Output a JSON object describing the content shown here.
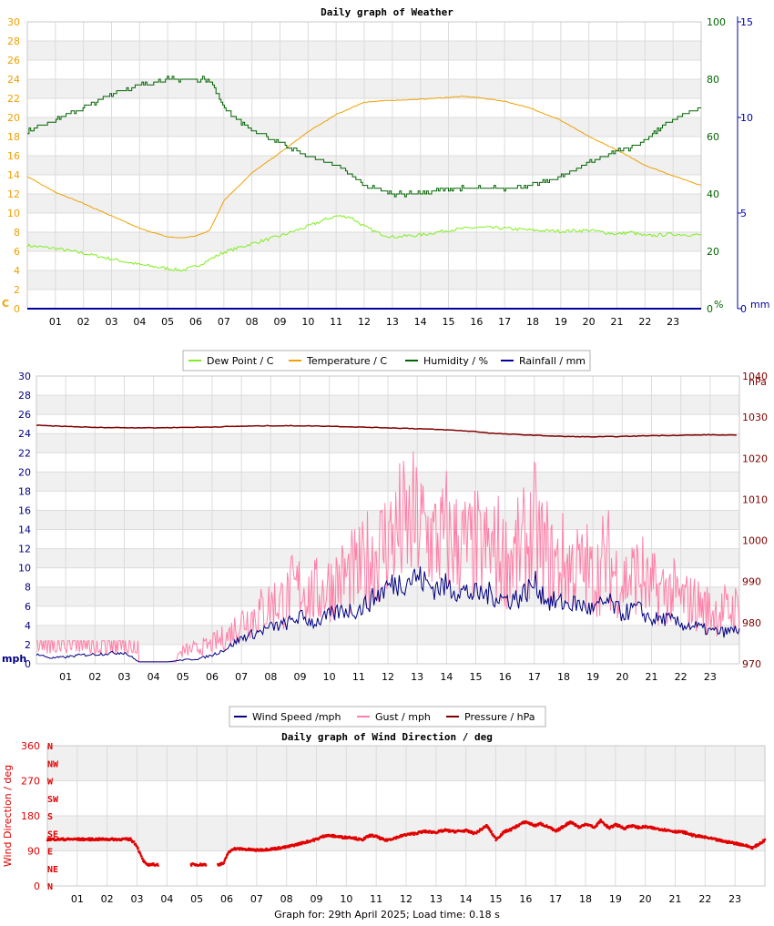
{
  "footer": "Graph for: 29th April 2025; Load time: 0.18 s",
  "hours": [
    "01",
    "02",
    "03",
    "04",
    "05",
    "06",
    "07",
    "08",
    "09",
    "10",
    "11",
    "12",
    "13",
    "14",
    "15",
    "16",
    "17",
    "18",
    "19",
    "20",
    "21",
    "22",
    "23"
  ],
  "colors": {
    "dewpoint": "#80ee20",
    "temperature": "#f0a000",
    "humidity": "#006400",
    "rainfall": "#0000a0",
    "wind": "#000080",
    "gust": "#ff80a8",
    "pressure": "#800000",
    "direction": "#e00000",
    "left_axis_weather": "#f0a000",
    "left_axis_wind": "#000080"
  },
  "chart_data": [
    {
      "type": "line",
      "title": "Daily graph of Weather",
      "x_unit": "hour of day",
      "x_range": [
        0,
        24
      ],
      "left_axis": {
        "unit": "C",
        "range": [
          0,
          30
        ],
        "ticks": [
          0,
          2,
          4,
          6,
          8,
          10,
          12,
          14,
          16,
          18,
          20,
          22,
          24,
          26,
          28,
          30
        ]
      },
      "right_axis_humidity": {
        "unit": "%",
        "range": [
          0,
          100
        ],
        "ticks": [
          0,
          20,
          40,
          60,
          80,
          100
        ]
      },
      "right_axis_rain": {
        "unit": "mm",
        "range": [
          0,
          15
        ],
        "ticks": [
          0,
          5,
          10,
          15
        ]
      },
      "grid": true,
      "legend": {
        "placement": "bottom-center"
      },
      "series": [
        {
          "name": "Dew Point / C",
          "axis": "left",
          "x": [
            0,
            1,
            2,
            3,
            4,
            5,
            5.5,
            6,
            7,
            8,
            9,
            10,
            10.5,
            11,
            11.5,
            12,
            12.5,
            13,
            14,
            15,
            16,
            17,
            18,
            19,
            20,
            21,
            21.5,
            22,
            23,
            24
          ],
          "values": [
            6.6,
            6.3,
            5.8,
            5.2,
            4.6,
            4.2,
            4.0,
            4.4,
            5.9,
            6.8,
            7.6,
            8.6,
            9.2,
            9.7,
            9.6,
            8.6,
            7.9,
            7.5,
            7.7,
            8.2,
            8.5,
            8.4,
            8.2,
            8.1,
            8.2,
            7.8,
            8.0,
            7.6,
            7.8,
            7.7
          ]
        },
        {
          "name": "Temperature / C",
          "axis": "left",
          "x": [
            0,
            1,
            2,
            3,
            4,
            5,
            5.5,
            6,
            6.5,
            7,
            8,
            9,
            10,
            11,
            12,
            13,
            14,
            15,
            15.5,
            16,
            17,
            18,
            19,
            20,
            21,
            22,
            23,
            24
          ],
          "values": [
            13.8,
            12.2,
            11.0,
            9.7,
            8.4,
            7.5,
            7.4,
            7.6,
            8.2,
            11.3,
            14.2,
            16.3,
            18.5,
            20.3,
            21.6,
            21.8,
            21.9,
            22.1,
            22.2,
            22.1,
            21.7,
            20.9,
            19.7,
            18.0,
            16.6,
            15.0,
            13.9,
            12.9
          ]
        },
        {
          "name": "Humidity / %",
          "axis": "right",
          "x": [
            0,
            1,
            2,
            3,
            4,
            5,
            6,
            6.5,
            7,
            8,
            9,
            10,
            11,
            12,
            13,
            14,
            15,
            16,
            17,
            18,
            19,
            20,
            21,
            21.5,
            22,
            23,
            24
          ],
          "values": [
            62,
            66,
            70,
            75,
            78,
            80,
            80,
            80,
            70,
            62,
            58,
            53,
            50,
            43,
            40,
            40,
            42,
            42,
            42,
            43,
            46,
            51,
            55,
            56,
            59,
            66,
            70
          ]
        },
        {
          "name": "Rainfall / mm",
          "axis": "rain",
          "x": [
            0,
            24
          ],
          "values": [
            0,
            0
          ]
        }
      ]
    },
    {
      "type": "line",
      "title": "",
      "x_unit": "hour of day",
      "x_range": [
        0,
        24
      ],
      "left_axis": {
        "unit": "mph",
        "range": [
          0,
          30
        ],
        "ticks": [
          0,
          2,
          4,
          6,
          8,
          10,
          12,
          14,
          16,
          18,
          20,
          22,
          24,
          26,
          28,
          30
        ]
      },
      "right_axis": {
        "unit": "hPa",
        "range": [
          970,
          1040
        ],
        "ticks": [
          970,
          980,
          990,
          1000,
          1010,
          1020,
          1030,
          1040
        ]
      },
      "grid": true,
      "legend": {
        "placement": "bottom-center"
      },
      "series": [
        {
          "name": "Wind Speed /mph",
          "axis": "left",
          "x": [
            0,
            0.5,
            1,
            1.5,
            2,
            2.5,
            3,
            3.5,
            4,
            4.5,
            5,
            5.5,
            6,
            6.5,
            7,
            7.5,
            8,
            8.5,
            9,
            9.5,
            10,
            10.5,
            11,
            11.5,
            12,
            12.5,
            13,
            13.5,
            14,
            14.5,
            15,
            15.5,
            16,
            16.5,
            17,
            17.5,
            18,
            18.5,
            19,
            19.5,
            20,
            20.5,
            21,
            21.5,
            22,
            22.5,
            23,
            23.5,
            24
          ],
          "values": [
            1,
            0.6,
            0.7,
            0.9,
            1,
            1.1,
            1.2,
            0.2,
            0.2,
            0.2,
            0.4,
            0.5,
            0.9,
            1.6,
            2.7,
            3.2,
            3.8,
            4.1,
            4.9,
            4.3,
            5.0,
            5.6,
            5.6,
            6.8,
            8.1,
            8.6,
            9.1,
            8.0,
            8.1,
            7.6,
            7.2,
            7.3,
            6.7,
            6.9,
            8.4,
            6.5,
            6.3,
            6.2,
            5.6,
            6.5,
            5.2,
            5.8,
            4.6,
            4.7,
            4.1,
            3.9,
            3.4,
            3.3,
            3.6
          ]
        },
        {
          "name": "Gust / mph",
          "axis": "left",
          "x": [
            0,
            0.5,
            1,
            1.5,
            2,
            2.5,
            3,
            3.5,
            4,
            4.5,
            5,
            5.5,
            6,
            6.5,
            7,
            7.5,
            8,
            8.5,
            9,
            9.5,
            10,
            10.5,
            11,
            11.5,
            12,
            12.5,
            13,
            13.5,
            14,
            14.5,
            15,
            15.5,
            16,
            16.5,
            17,
            17.5,
            18,
            18.5,
            19,
            19.5,
            20,
            20.5,
            21,
            21.5,
            22,
            22.5,
            23,
            23.5,
            24
          ],
          "values": [
            1.5,
            1.5,
            1.5,
            1.6,
            1.6,
            1.8,
            2.0,
            0.2,
            0.2,
            0.2,
            1.5,
            1.8,
            2.3,
            3.2,
            5.1,
            5.9,
            7.1,
            7.6,
            9.2,
            8.0,
            9.3,
            10.3,
            10.4,
            12.7,
            15.0,
            15.6,
            16.7,
            14.8,
            14.9,
            14.2,
            13.3,
            13.5,
            12.5,
            12.9,
            15.6,
            12.1,
            11.6,
            11.5,
            10.3,
            12.0,
            9.7,
            10.7,
            8.5,
            8.8,
            7.6,
            7.2,
            6.3,
            6.1,
            6.7
          ]
        },
        {
          "name": "Pressure / hPa",
          "axis": "right",
          "x": [
            0,
            2,
            4,
            6,
            7,
            8,
            9,
            10,
            11,
            12,
            13,
            14,
            15,
            15.5,
            16,
            17,
            18,
            19,
            20,
            21,
            22,
            23,
            23.9
          ],
          "values": [
            1028.0,
            1027.5,
            1027.4,
            1027.6,
            1027.8,
            1027.9,
            1027.9,
            1027.8,
            1027.6,
            1027.4,
            1027.2,
            1026.9,
            1026.5,
            1026.1,
            1025.9,
            1025.6,
            1025.3,
            1025.2,
            1025.3,
            1025.5,
            1025.6,
            1025.7,
            1025.6
          ]
        }
      ]
    },
    {
      "type": "scatter",
      "title": "Daily graph of Wind Direction / deg",
      "x_unit": "hour of day",
      "x_range": [
        0,
        24
      ],
      "y_axis": {
        "label": "Wind Direction / deg",
        "range": [
          0,
          360
        ],
        "ticks": [
          0,
          90,
          180,
          270,
          360
        ]
      },
      "compass_labels": [
        {
          "label": "N",
          "deg": 360
        },
        {
          "label": "NW",
          "deg": 315
        },
        {
          "label": "W",
          "deg": 270
        },
        {
          "label": "SW",
          "deg": 225
        },
        {
          "label": "S",
          "deg": 180
        },
        {
          "label": "SE",
          "deg": 135
        },
        {
          "label": "E",
          "deg": 90
        },
        {
          "label": "NE",
          "deg": 45
        },
        {
          "label": "N",
          "deg": 0
        }
      ],
      "grid": true,
      "series": [
        {
          "name": "Wind Direction",
          "segments": [
            {
              "x": [
                0,
                0.5,
                1,
                1.5,
                2,
                2.5,
                2.8
              ],
              "values": [
                120,
                120,
                120,
                120,
                120,
                120,
                120
              ]
            },
            {
              "x": [
                2.8,
                2.9,
                3.0,
                3.1,
                3.2,
                3.3,
                3.5,
                3.7
              ],
              "values": [
                118,
                112,
                102,
                82,
                66,
                55,
                55,
                55
              ]
            },
            {
              "x": [
                4.8,
                5.0,
                5.2,
                5.3
              ],
              "values": [
                55,
                55,
                55,
                55
              ]
            },
            {
              "x": [
                5.7,
                5.9,
                6.0
              ],
              "values": [
                55,
                58,
                78
              ]
            },
            {
              "x": [
                6.0,
                6.2,
                6.5,
                7,
                7.5,
                8,
                8.5,
                9,
                9.3,
                9.6,
                9.9,
                10.2,
                10.5,
                10.8,
                11,
                11.3,
                11.6,
                12,
                12.3,
                12.6,
                13,
                13.3,
                13.6,
                14,
                14.3,
                14.5,
                14.7,
                15,
                15.3,
                15.5,
                15.8,
                16,
                16.3,
                16.5,
                16.8,
                17,
                17.3,
                17.5,
                17.8,
                18,
                18.3,
                18.5,
                18.8,
                19,
                19.3,
                19.5,
                19.8,
                20,
                20.3,
                20.6,
                21,
                21.3,
                21.6,
                22,
                22.3,
                22.6,
                23,
                23.3,
                23.6,
                24
              ],
              "values": [
                80,
                96,
                95,
                92,
                95,
                100,
                110,
                120,
                130,
                128,
                125,
                125,
                118,
                130,
                127,
                117,
                123,
                132,
                135,
                140,
                138,
                143,
                140,
                142,
                135,
                145,
                155,
                120,
                140,
                145,
                158,
                165,
                155,
                160,
                150,
                140,
                155,
                165,
                150,
                160,
                150,
                168,
                148,
                158,
                148,
                155,
                150,
                152,
                148,
                145,
                140,
                138,
                130,
                125,
                120,
                115,
                110,
                105,
                98,
                118
              ]
            }
          ]
        }
      ]
    }
  ]
}
